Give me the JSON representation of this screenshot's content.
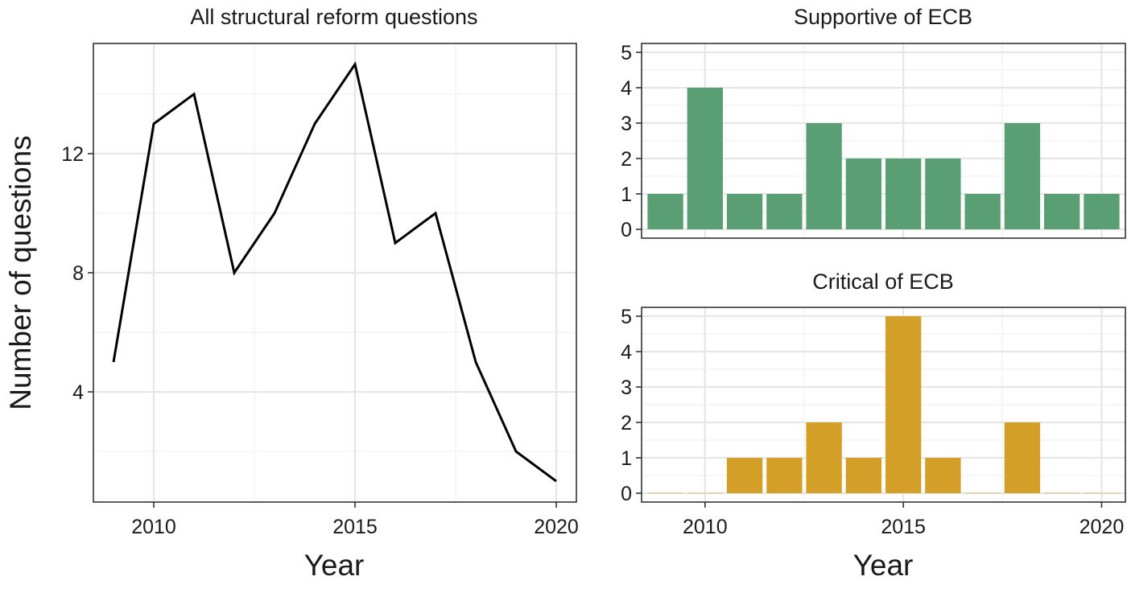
{
  "figure": {
    "xlabel": "Year",
    "ylabel": "Number of questions"
  },
  "chart_data": [
    {
      "type": "line",
      "title": "All structural reform questions",
      "x": [
        2009,
        2010,
        2011,
        2012,
        2013,
        2014,
        2015,
        2016,
        2017,
        2018,
        2019,
        2020
      ],
      "values": [
        5,
        13,
        14,
        8,
        10,
        13,
        15,
        9,
        10,
        5,
        2,
        1
      ],
      "xlim": [
        2008.5,
        2020.5
      ],
      "ylim": [
        0.3,
        15.7
      ],
      "xticks": [
        2010,
        2015,
        2020
      ],
      "yticks": [
        4,
        8,
        12
      ],
      "xlabel": "Year",
      "ylabel": "Number of questions",
      "color": "#000000",
      "grid": true
    },
    {
      "type": "bar",
      "title": "Supportive of ECB",
      "x": [
        2009,
        2010,
        2011,
        2012,
        2013,
        2014,
        2015,
        2016,
        2017,
        2018,
        2019,
        2020
      ],
      "values": [
        1,
        4,
        1,
        1,
        3,
        2,
        2,
        2,
        1,
        3,
        1,
        1
      ],
      "xlim": [
        2008.4,
        2020.6
      ],
      "ylim": [
        -0.25,
        5.25
      ],
      "xticks": [
        2010,
        2015,
        2020
      ],
      "yticks": [
        0,
        1,
        2,
        3,
        4,
        5
      ],
      "color": "#5a9e73",
      "grid": true
    },
    {
      "type": "bar",
      "title": "Critical of ECB",
      "x": [
        2009,
        2010,
        2011,
        2012,
        2013,
        2014,
        2015,
        2016,
        2017,
        2018,
        2019,
        2020
      ],
      "values": [
        0,
        0,
        1,
        1,
        2,
        1,
        5,
        1,
        0,
        2,
        0,
        0
      ],
      "xlim": [
        2008.4,
        2020.6
      ],
      "ylim": [
        -0.25,
        5.25
      ],
      "xticks": [
        2010,
        2015,
        2020
      ],
      "yticks": [
        0,
        1,
        2,
        3,
        4,
        5
      ],
      "xlabel": "Year",
      "color": "#d49f27",
      "grid": true
    }
  ]
}
